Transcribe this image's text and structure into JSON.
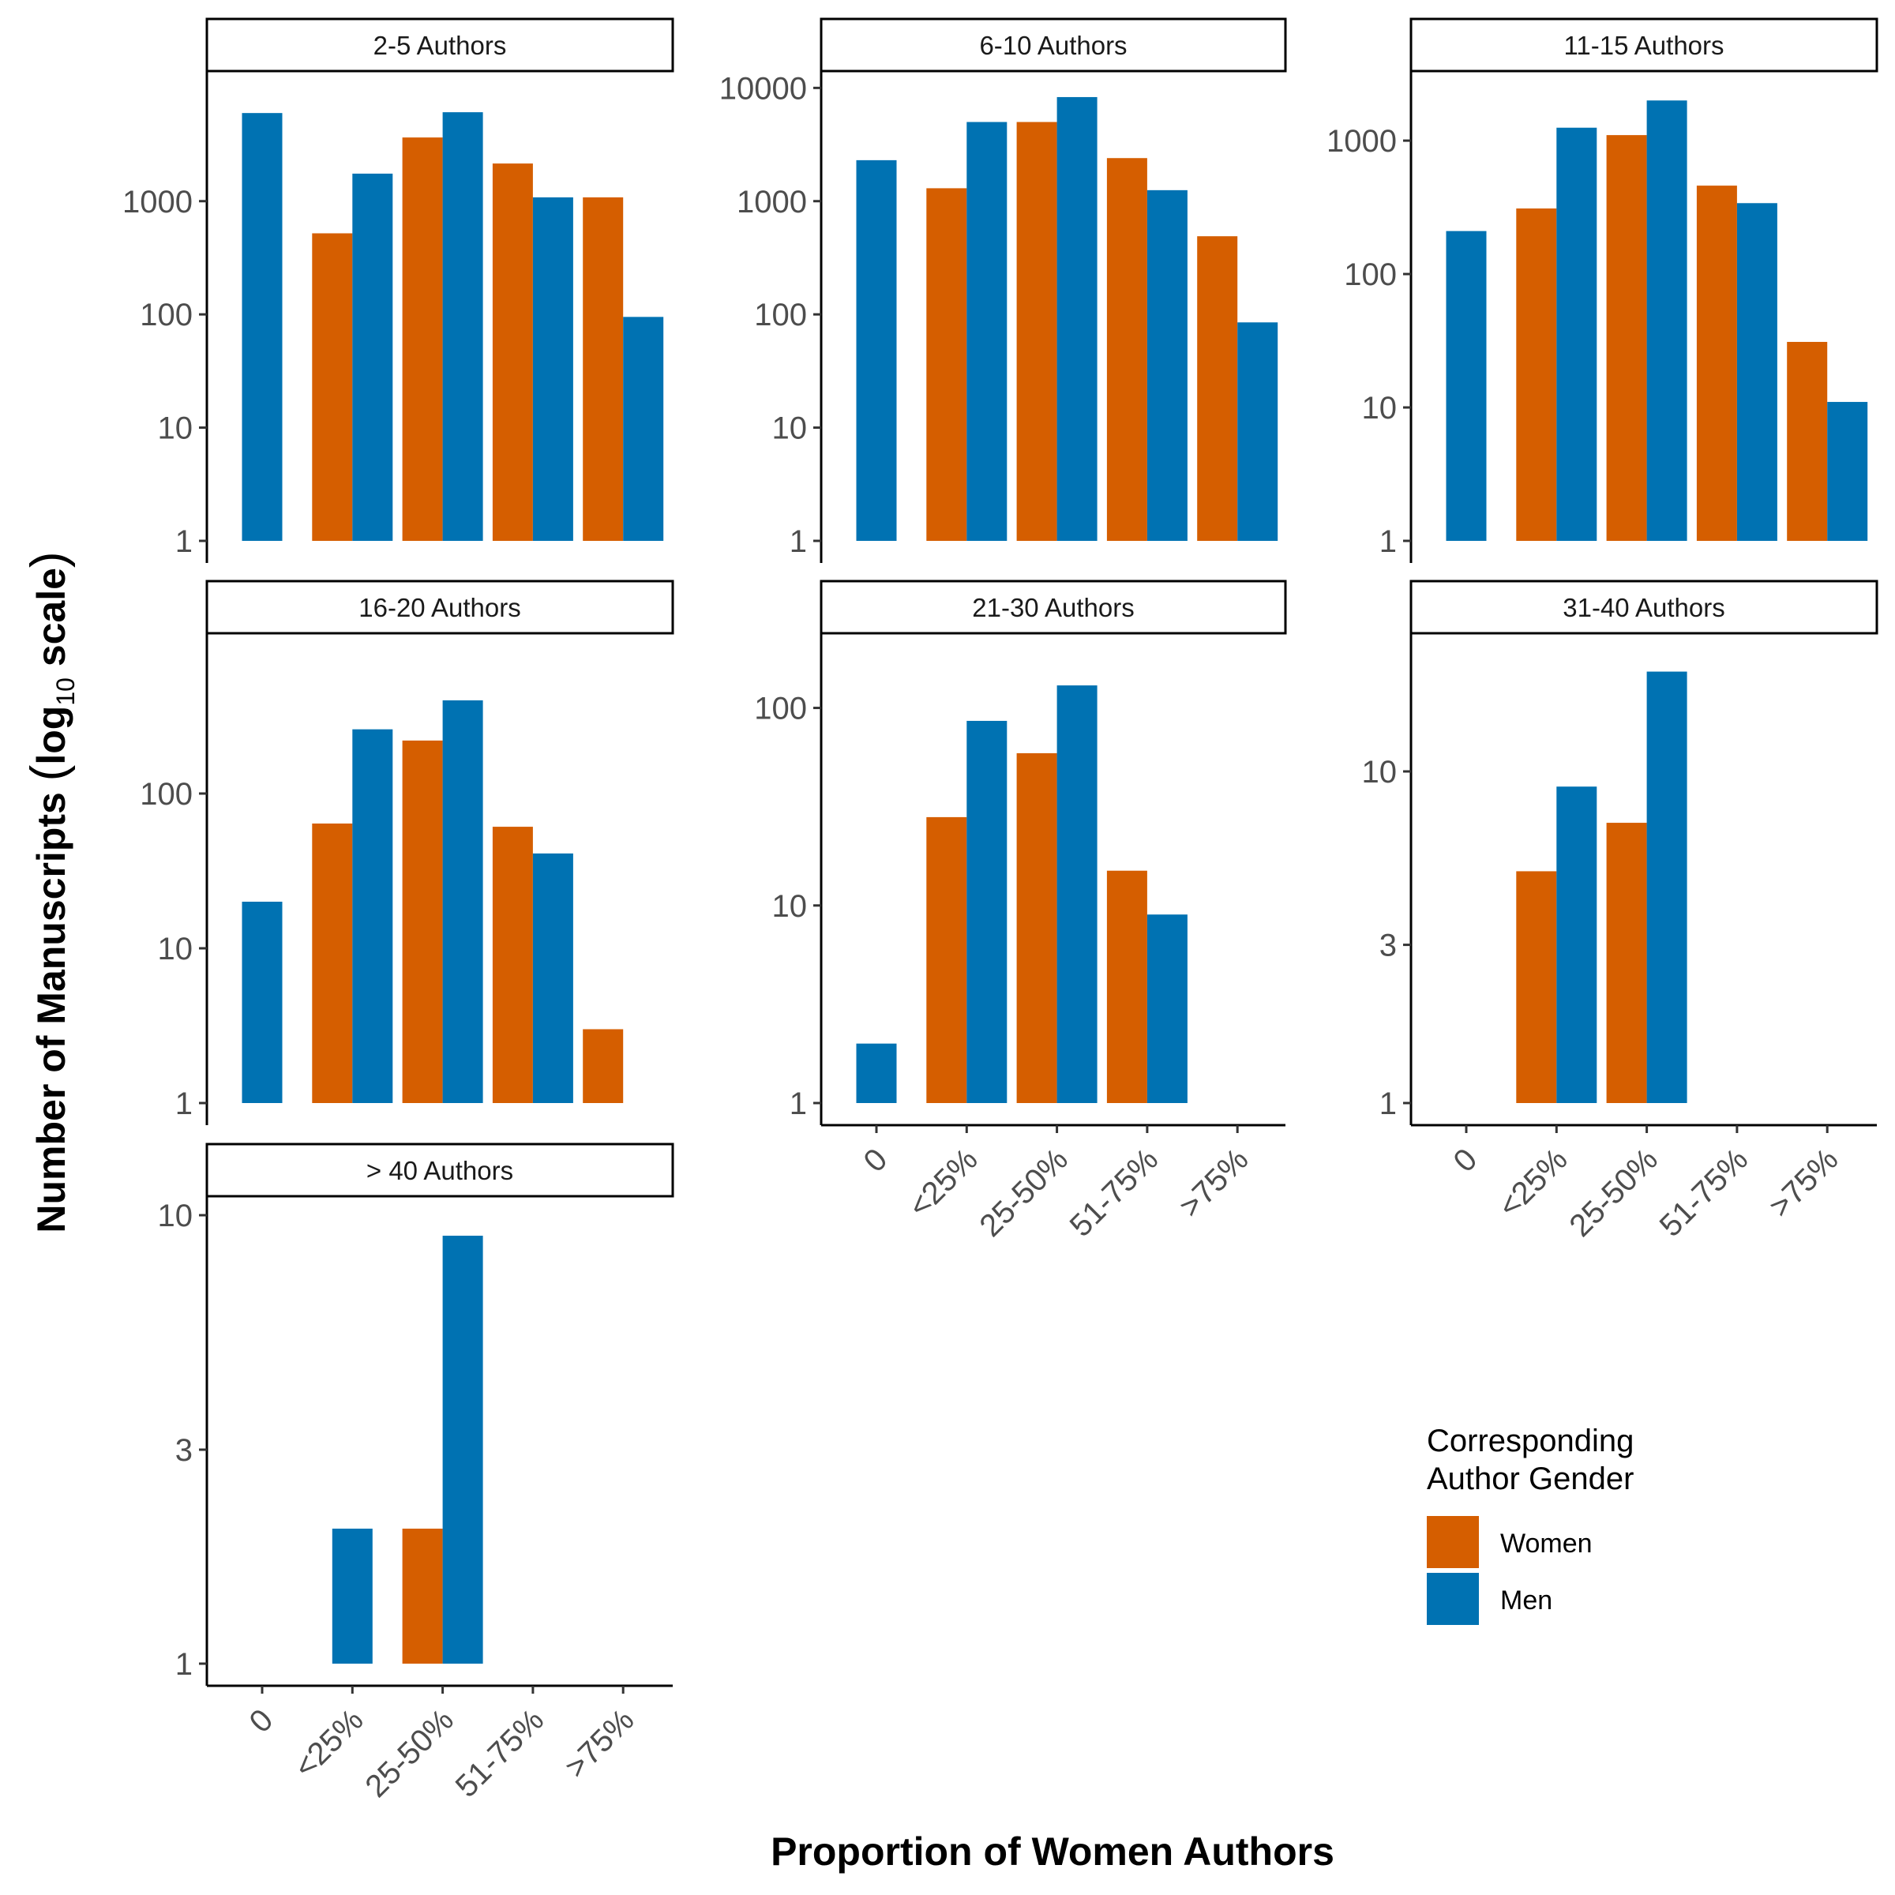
{
  "chart_data": {
    "type": "bar",
    "scale": "log10",
    "xlabel": "Proportion of Women Authors",
    "ylabel_parts": [
      "Number",
      "of",
      "Manuscripts",
      "(",
      "log",
      "10",
      "scale",
      ")"
    ],
    "categories": [
      "0",
      "<25%",
      "25-50%",
      "51-75%",
      ">75%"
    ],
    "legend": {
      "title_lines": [
        "Corresponding",
        "Author Gender"
      ],
      "entries": [
        {
          "name": "Women",
          "color": "#D55E00"
        },
        {
          "name": "Men",
          "color": "#0072B2"
        }
      ],
      "placement": "bottom-right"
    },
    "grid": false,
    "panels": [
      {
        "title": "2-5 Authors",
        "ylim_log10": [
          1,
          4.1
        ],
        "yticks": [
          1,
          10,
          100,
          1000
        ],
        "x_ticks_shown": false,
        "bars": [
          {
            "category": "0",
            "series": "Men",
            "value": 6000
          },
          {
            "category": "<25%",
            "series": "Women",
            "value": 520
          },
          {
            "category": "<25%",
            "series": "Men",
            "value": 1750
          },
          {
            "category": "25-50%",
            "series": "Women",
            "value": 3650
          },
          {
            "category": "25-50%",
            "series": "Men",
            "value": 6100
          },
          {
            "category": "51-75%",
            "series": "Women",
            "value": 2150
          },
          {
            "category": "51-75%",
            "series": "Men",
            "value": 1080
          },
          {
            "category": ">75%",
            "series": "Women",
            "value": 1080
          },
          {
            "category": ">75%",
            "series": "Men",
            "value": 95
          }
        ]
      },
      {
        "title": "6-10 Authors",
        "ylim_log10": [
          1,
          4.1
        ],
        "yticks": [
          1,
          10,
          100,
          1000,
          10000
        ],
        "x_ticks_shown": false,
        "bars": [
          {
            "category": "0",
            "series": "Men",
            "value": 2300
          },
          {
            "category": "<25%",
            "series": "Women",
            "value": 1300
          },
          {
            "category": "<25%",
            "series": "Men",
            "value": 5000
          },
          {
            "category": "25-50%",
            "series": "Women",
            "value": 5000
          },
          {
            "category": "25-50%",
            "series": "Men",
            "value": 8300
          },
          {
            "category": "51-75%",
            "series": "Women",
            "value": 2400
          },
          {
            "category": "51-75%",
            "series": "Men",
            "value": 1250
          },
          {
            "category": ">75%",
            "series": "Women",
            "value": 490
          },
          {
            "category": ">75%",
            "series": "Men",
            "value": 85
          }
        ]
      },
      {
        "title": "11-15 Authors",
        "ylim_log10": [
          1,
          3.48
        ],
        "yticks": [
          1,
          10,
          100,
          1000
        ],
        "x_ticks_shown": false,
        "bars": [
          {
            "category": "0",
            "series": "Men",
            "value": 210
          },
          {
            "category": "<25%",
            "series": "Women",
            "value": 310
          },
          {
            "category": "<25%",
            "series": "Men",
            "value": 1250
          },
          {
            "category": "25-50%",
            "series": "Women",
            "value": 1100
          },
          {
            "category": "25-50%",
            "series": "Men",
            "value": 2000
          },
          {
            "category": "51-75%",
            "series": "Women",
            "value": 460
          },
          {
            "category": "51-75%",
            "series": "Men",
            "value": 340
          },
          {
            "category": ">75%",
            "series": "Women",
            "value": 31
          },
          {
            "category": ">75%",
            "series": "Men",
            "value": 11
          }
        ]
      },
      {
        "title": "16-20 Authors",
        "ylim_log10": [
          1,
          3.0
        ],
        "yticks": [
          1,
          10,
          100
        ],
        "x_ticks_shown": false,
        "bars": [
          {
            "category": "0",
            "series": "Men",
            "value": 20
          },
          {
            "category": "<25%",
            "series": "Women",
            "value": 64
          },
          {
            "category": "<25%",
            "series": "Men",
            "value": 260
          },
          {
            "category": "25-50%",
            "series": "Women",
            "value": 220
          },
          {
            "category": "25-50%",
            "series": "Men",
            "value": 400
          },
          {
            "category": "51-75%",
            "series": "Women",
            "value": 61
          },
          {
            "category": "51-75%",
            "series": "Men",
            "value": 41
          },
          {
            "category": ">75%",
            "series": "Women",
            "value": 3
          }
        ]
      },
      {
        "title": "21-30 Authors",
        "ylim_log10": [
          1,
          2.35
        ],
        "yticks": [
          1,
          10,
          100
        ],
        "x_ticks_shown": true,
        "bars": [
          {
            "category": "0",
            "series": "Men",
            "value": 2
          },
          {
            "category": "<25%",
            "series": "Women",
            "value": 28
          },
          {
            "category": "<25%",
            "series": "Men",
            "value": 86
          },
          {
            "category": "25-50%",
            "series": "Women",
            "value": 59
          },
          {
            "category": "25-50%",
            "series": "Men",
            "value": 130
          },
          {
            "category": "51-75%",
            "series": "Women",
            "value": 15
          },
          {
            "category": "51-75%",
            "series": "Men",
            "value": 9
          }
        ]
      },
      {
        "title": "31-40 Authors",
        "ylim_log10": [
          1,
          1.4
        ],
        "yticks": [
          1,
          3,
          10
        ],
        "x_ticks_shown": true,
        "bars": [
          {
            "category": "<25%",
            "series": "Women",
            "value": 5
          },
          {
            "category": "<25%",
            "series": "Men",
            "value": 9
          },
          {
            "category": "25-50%",
            "series": "Women",
            "value": 7
          },
          {
            "category": "25-50%",
            "series": "Men",
            "value": 20
          }
        ]
      },
      {
        "title": "> 40 Authors",
        "ylim_log10": [
          1,
          1.03
        ],
        "yticks": [
          1,
          3,
          10
        ],
        "x_ticks_shown": true,
        "bars": [
          {
            "category": "<25%",
            "series": "Men",
            "value": 2
          },
          {
            "category": "25-50%",
            "series": "Women",
            "value": 2
          },
          {
            "category": "25-50%",
            "series": "Men",
            "value": 9
          }
        ]
      }
    ]
  }
}
